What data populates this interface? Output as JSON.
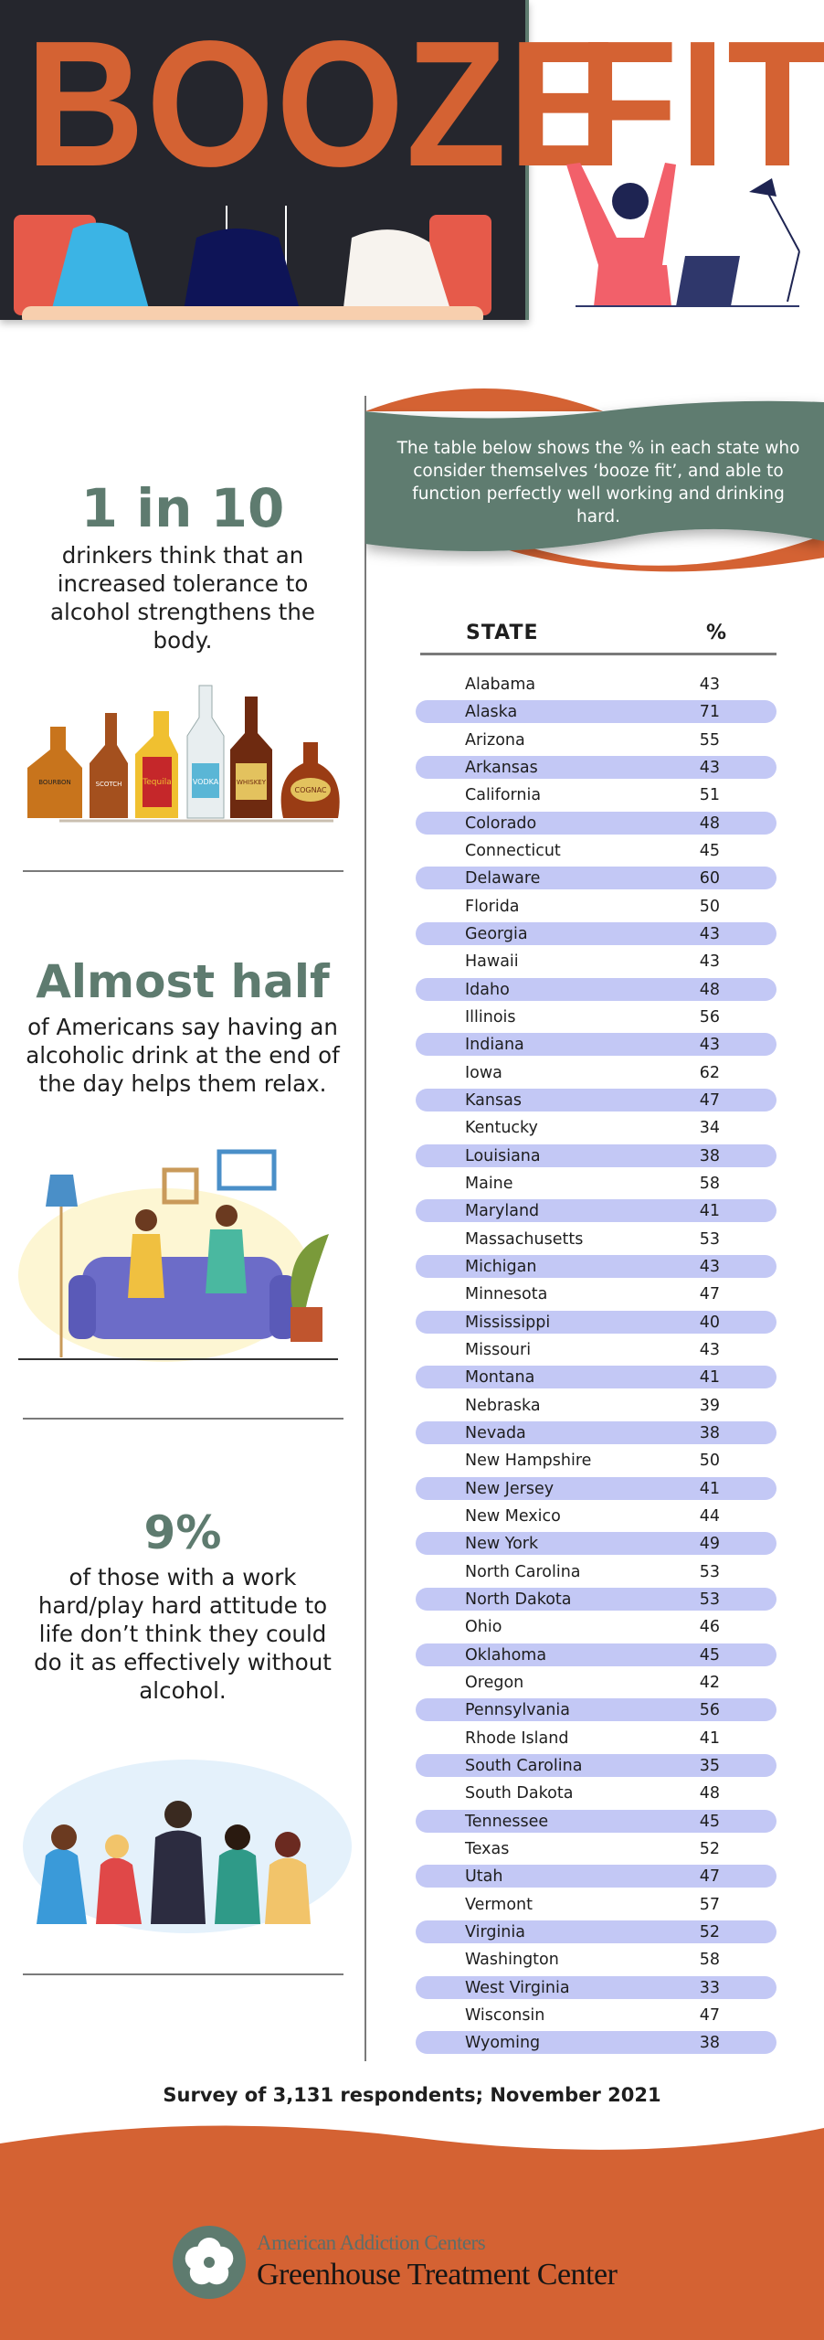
{
  "header": {
    "title_left": "BOOZE",
    "title_right": "FIT"
  },
  "colors": {
    "accent_orange": "#d46233",
    "accent_green": "#5e7b6f",
    "dark_panel": "#25262d",
    "row_highlight": "#c3c8f5"
  },
  "banner": {
    "text": "The table below shows the % in each state who consider themselves ‘booze fit’, and able to function perfectly well working and drinking hard."
  },
  "stats": [
    {
      "lead": "1 in 10",
      "body": "drinkers think that an increased tolerance to alcohol strengthens the body.",
      "bottle_labels": [
        "BOURBON",
        "SCOTCH",
        "Tequila",
        "VODKA",
        "WHISKEY",
        "COGNAC"
      ]
    },
    {
      "lead": "Almost half",
      "body": "of Americans say having an alcoholic drink at the end of the day helps them relax."
    },
    {
      "lead": "9%",
      "body": "of those with a work hard/play hard attitude to life don’t think they could do it as effectively without alcohol."
    }
  ],
  "table": {
    "headers": [
      "STATE",
      "%"
    ],
    "rows": [
      [
        "Alabama",
        "43"
      ],
      [
        "Alaska",
        "71"
      ],
      [
        "Arizona",
        "55"
      ],
      [
        "Arkansas",
        "43"
      ],
      [
        "California",
        "51"
      ],
      [
        "Colorado",
        "48"
      ],
      [
        "Connecticut",
        "45"
      ],
      [
        "Delaware",
        "60"
      ],
      [
        "Florida",
        "50"
      ],
      [
        "Georgia",
        "43"
      ],
      [
        "Hawaii",
        "43"
      ],
      [
        "Idaho",
        "48"
      ],
      [
        "Illinois",
        "56"
      ],
      [
        "Indiana",
        "43"
      ],
      [
        "Iowa",
        "62"
      ],
      [
        "Kansas",
        "47"
      ],
      [
        "Kentucky",
        "34"
      ],
      [
        "Louisiana",
        "38"
      ],
      [
        "Maine",
        "58"
      ],
      [
        "Maryland",
        "41"
      ],
      [
        "Massachusetts",
        "53"
      ],
      [
        "Michigan",
        "43"
      ],
      [
        "Minnesota",
        "47"
      ],
      [
        "Mississippi",
        "40"
      ],
      [
        "Missouri",
        "43"
      ],
      [
        "Montana",
        "41"
      ],
      [
        "Nebraska",
        "39"
      ],
      [
        "Nevada",
        "38"
      ],
      [
        "New Hampshire",
        "50"
      ],
      [
        "New Jersey",
        "41"
      ],
      [
        "New Mexico",
        "44"
      ],
      [
        "New York",
        "49"
      ],
      [
        "North Carolina",
        "53"
      ],
      [
        "North Dakota",
        "53"
      ],
      [
        "Ohio",
        "46"
      ],
      [
        "Oklahoma",
        "45"
      ],
      [
        "Oregon",
        "42"
      ],
      [
        "Pennsylvania",
        "56"
      ],
      [
        "Rhode Island",
        "41"
      ],
      [
        "South Carolina",
        "35"
      ],
      [
        "South Dakota",
        "48"
      ],
      [
        "Tennessee",
        "45"
      ],
      [
        "Texas",
        "52"
      ],
      [
        "Utah",
        "47"
      ],
      [
        "Vermont",
        "57"
      ],
      [
        "Virginia",
        "52"
      ],
      [
        "Washington",
        "58"
      ],
      [
        "West Virginia",
        "33"
      ],
      [
        "Wisconsin",
        "47"
      ],
      [
        "Wyoming",
        "38"
      ]
    ]
  },
  "survey_note": "Survey of 3,131 respondents; November 2021",
  "footer": {
    "brand_top": "American Addiction Centers",
    "brand_main": "Greenhouse Treatment Center",
    "logo_icon": "flower-icon"
  }
}
